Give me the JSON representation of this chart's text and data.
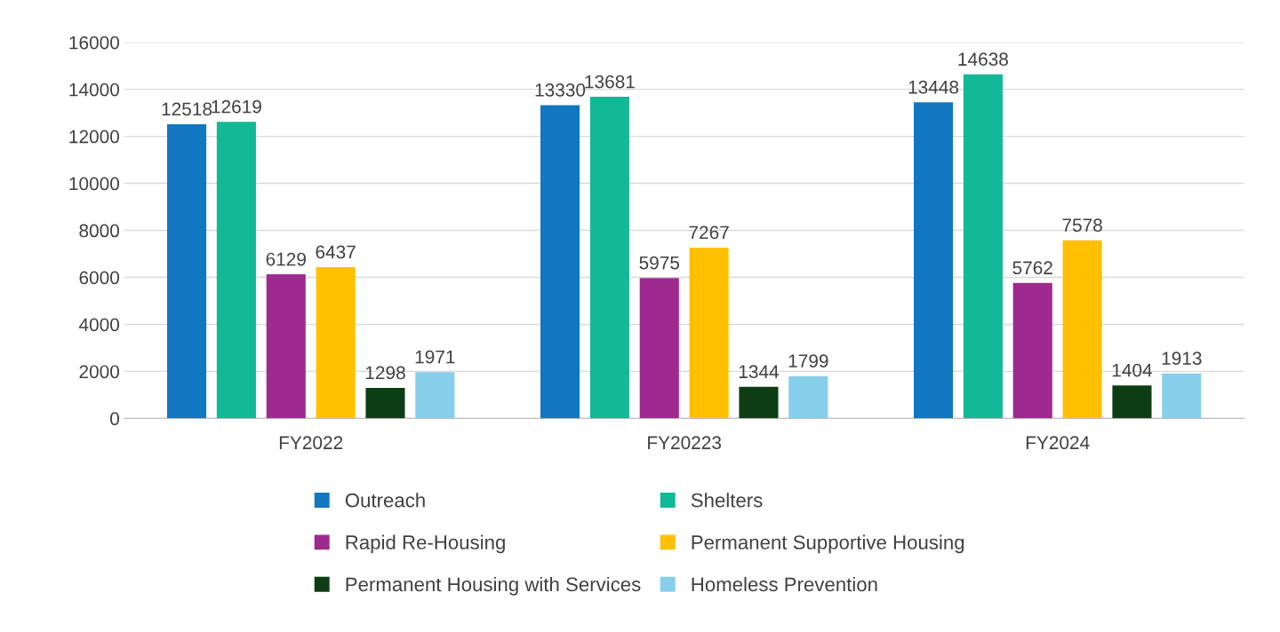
{
  "chart_data": {
    "type": "bar",
    "categories": [
      "FY2022",
      "FY20223",
      "FY2024"
    ],
    "series": [
      {
        "name": "Outreach",
        "color": "#1177c0",
        "values": [
          12518,
          13330,
          13448
        ]
      },
      {
        "name": "Shelters",
        "color": "#13b897",
        "values": [
          12619,
          13681,
          14638
        ]
      },
      {
        "name": "Rapid Re-Housing",
        "color": "#9e2a8f",
        "values": [
          6129,
          5975,
          5762
        ]
      },
      {
        "name": "Permanent Supportive Housing",
        "color": "#ffc000",
        "values": [
          6437,
          7267,
          7578
        ]
      },
      {
        "name": "Permanent Housing with Services",
        "color": "#0e3d14",
        "values": [
          1298,
          1344,
          1404
        ]
      },
      {
        "name": "Homeless Prevention",
        "color": "#87ceeb",
        "values": [
          1971,
          1799,
          1913
        ]
      }
    ],
    "ylim": [
      0,
      16000
    ],
    "yticks": [
      0,
      2000,
      4000,
      6000,
      8000,
      10000,
      12000,
      14000,
      16000
    ],
    "grid": "y",
    "legend": "bottom",
    "data_labels": true
  }
}
